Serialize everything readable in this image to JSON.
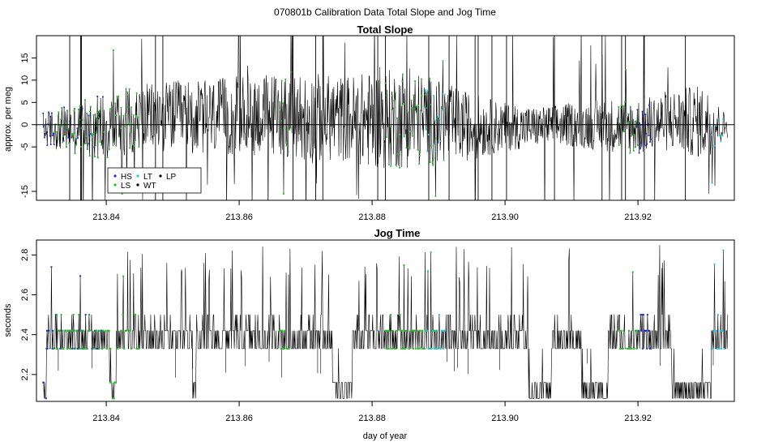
{
  "figure": {
    "title": "070801b   Calibration Data Total Slope and Jog Time",
    "xlabel": "day of year"
  },
  "colors": {
    "HS": "#1f2fd0",
    "LS": "#22c022",
    "LT": "#22c8e0",
    "WT": "#000000",
    "LP": "#000000"
  },
  "chart_data": [
    {
      "type": "line",
      "title": "Total Slope",
      "xlabel": "",
      "ylabel": "approx. per meg",
      "xlim": [
        213.8295,
        213.9345
      ],
      "ylim": [
        -17,
        20
      ],
      "xticks": [
        213.84,
        213.86,
        213.88,
        213.9,
        213.92
      ],
      "xtick_labels": [
        "213.84",
        "213.86",
        "213.88",
        "213.90",
        "213.92"
      ],
      "yticks": [
        -15,
        -5,
        0,
        5,
        10,
        15
      ],
      "ytick_labels": [
        "-15",
        "-5",
        "0",
        "5",
        "10",
        "15"
      ],
      "reference_line": 0,
      "legend": {
        "placement": "bottom-left",
        "entries": [
          {
            "label": "HS",
            "series": "HS"
          },
          {
            "label": "LS",
            "series": "LS"
          },
          {
            "label": "LT",
            "series": "LT"
          },
          {
            "label": "WT",
            "series": "WT"
          },
          {
            "label": "LP",
            "series": "LP"
          }
        ]
      },
      "data_range": {
        "x_start": 213.8305,
        "x_end": 213.9335
      },
      "series": [
        {
          "name": "HS",
          "segments": [
            [
              213.8305,
              213.8395
            ],
            [
              213.9195,
              213.922
            ]
          ]
        },
        {
          "name": "LS",
          "segments": [
            [
              213.832,
              213.845
            ],
            [
              213.866,
              213.868
            ],
            [
              213.882,
              213.89
            ],
            [
              213.917,
              213.92
            ]
          ]
        },
        {
          "name": "LT",
          "segments": [
            [
              213.888,
              213.891
            ],
            [
              213.931,
              213.933
            ]
          ]
        }
      ],
      "envelope": [
        {
          "x": 213.831,
          "lo": -5,
          "hi": 3
        },
        {
          "x": 213.836,
          "lo": -7,
          "hi": 5
        },
        {
          "x": 213.84,
          "lo": -8,
          "hi": 8
        },
        {
          "x": 213.845,
          "lo": -6,
          "hi": 9
        },
        {
          "x": 213.85,
          "lo": -6,
          "hi": 10
        },
        {
          "x": 213.855,
          "lo": -7,
          "hi": 10
        },
        {
          "x": 213.86,
          "lo": -7,
          "hi": 11
        },
        {
          "x": 213.866,
          "lo": -7,
          "hi": 12
        },
        {
          "x": 213.87,
          "lo": -9,
          "hi": 12
        },
        {
          "x": 213.875,
          "lo": -8,
          "hi": 11
        },
        {
          "x": 213.88,
          "lo": -10,
          "hi": 12
        },
        {
          "x": 213.885,
          "lo": -10,
          "hi": 13
        },
        {
          "x": 213.89,
          "lo": -9,
          "hi": 10
        },
        {
          "x": 213.895,
          "lo": -8,
          "hi": 7
        },
        {
          "x": 213.9,
          "lo": -6,
          "hi": 5
        },
        {
          "x": 213.905,
          "lo": -5,
          "hi": 4
        },
        {
          "x": 213.91,
          "lo": -5,
          "hi": 5
        },
        {
          "x": 213.915,
          "lo": -6,
          "hi": 6
        },
        {
          "x": 213.92,
          "lo": -7,
          "hi": 6
        },
        {
          "x": 213.925,
          "lo": -6,
          "hi": 8
        },
        {
          "x": 213.93,
          "lo": -8,
          "hi": 9
        },
        {
          "x": 213.9335,
          "lo": -3,
          "hi": 2
        }
      ]
    },
    {
      "type": "line",
      "title": "Jog Time",
      "xlabel": "day of year",
      "ylabel": "seconds",
      "xlim": [
        213.8295,
        213.9345
      ],
      "ylim": [
        2.065,
        2.875
      ],
      "xticks": [
        213.84,
        213.86,
        213.88,
        213.9,
        213.92
      ],
      "xtick_labels": [
        "213.84",
        "213.86",
        "213.88",
        "213.90",
        "213.92"
      ],
      "yticks": [
        2.2,
        2.4,
        2.6,
        2.8
      ],
      "ytick_labels": [
        "2.2",
        "2.4",
        "2.6",
        "2.8"
      ],
      "levels": {
        "low": 2.08,
        "low_mid": 2.16,
        "base": 2.33,
        "mid": 2.42,
        "high": 2.5,
        "spike": 2.76
      },
      "low_segments": [
        [
          213.8305,
          213.831
        ],
        [
          213.8405,
          213.8415
        ],
        [
          213.853,
          213.8535
        ],
        [
          213.874,
          213.877
        ],
        [
          213.9035,
          213.907
        ],
        [
          213.9115,
          213.9155
        ],
        [
          213.925,
          213.931
        ]
      ],
      "series": [
        {
          "name": "HS",
          "segments": [
            [
              213.8305,
              213.8395
            ],
            [
              213.9195,
              213.922
            ]
          ]
        },
        {
          "name": "LS",
          "segments": [
            [
              213.832,
              213.845
            ],
            [
              213.866,
              213.868
            ],
            [
              213.882,
              213.89
            ],
            [
              213.917,
              213.92
            ]
          ]
        },
        {
          "name": "LT",
          "segments": [
            [
              213.888,
              213.891
            ],
            [
              213.931,
              213.933
            ]
          ]
        }
      ]
    }
  ]
}
